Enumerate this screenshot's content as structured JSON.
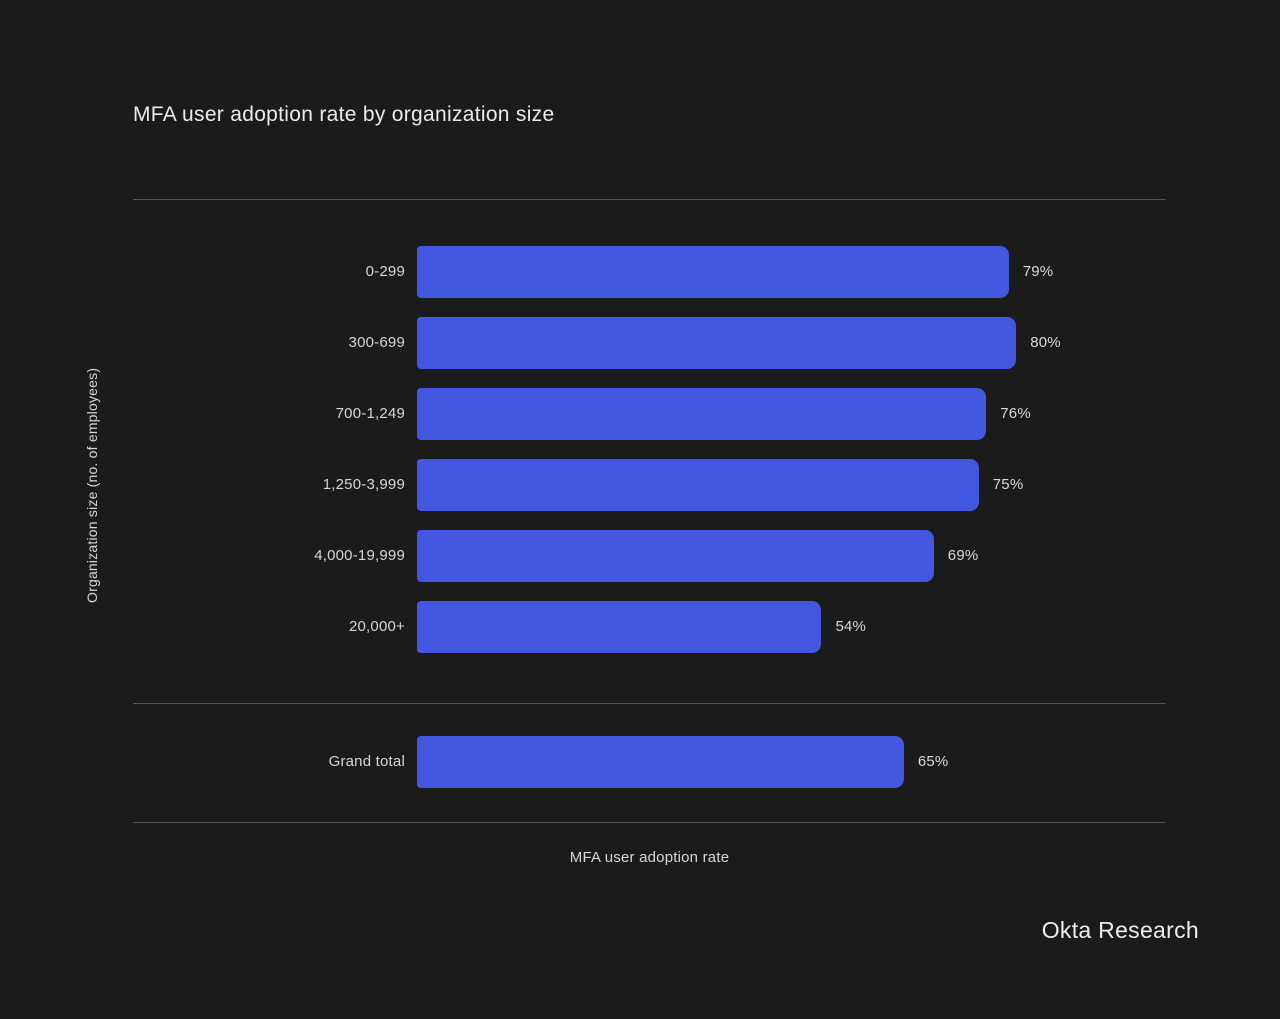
{
  "page": {
    "background": "#1b1b1b",
    "footer": "Okta Research"
  },
  "chart_data": {
    "type": "bar",
    "orientation": "horizontal",
    "title": "MFA user adoption rate by organization size",
    "xlabel": "MFA user adoption rate",
    "ylabel": "Organization size (no. of employees)",
    "categories": [
      "0-299",
      "300-699",
      "700-1,249",
      "1,250-3,999",
      "4,000-19,999",
      "20,000+"
    ],
    "values": [
      79,
      80,
      76,
      75,
      69,
      54
    ],
    "value_labels": [
      "79%",
      "80%",
      "76%",
      "75%",
      "69%",
      "54%"
    ],
    "grand_total": {
      "label": "Grand total",
      "value": 65,
      "value_label": "65%"
    },
    "xlim": [
      0,
      100
    ],
    "grid": false,
    "legend": "none",
    "bar_color": "#4357e1",
    "background_color": "#1b1b1b",
    "source": "Okta Research"
  }
}
